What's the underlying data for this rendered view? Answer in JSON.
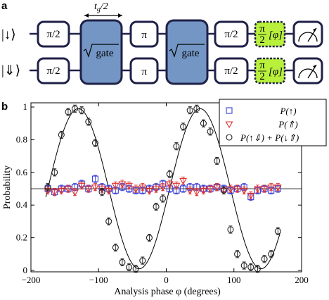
{
  "panel_a": {
    "label": "a",
    "wait_time_label": "t_g/2",
    "states": [
      "|↓⟩",
      "|⇓⟩"
    ],
    "gates": {
      "pi_half": "π/2",
      "pi": "π",
      "sqrt_gate": "gate",
      "analysis_top": "π",
      "analysis_bottom": "2",
      "analysis_phase": "[φ]"
    },
    "colors": {
      "gate_fill": "#7396c4",
      "analysis_fill": "#b8f03c",
      "box_stroke": "#1f2148"
    }
  },
  "panel_b": {
    "label": "b"
  },
  "chart_data": {
    "type": "scatter",
    "xlabel": "Analysis phase φ (degrees)",
    "ylabel": "Probability",
    "xlim": [
      -200,
      200
    ],
    "ylim": [
      0,
      1.02
    ],
    "xticks": [
      -200,
      -100,
      0,
      100,
      200
    ],
    "yticks": [
      0,
      0.2,
      0.4,
      0.6,
      0.8,
      1
    ],
    "grid": false,
    "legend_position": "top-right",
    "reference_line": 0.5,
    "series": [
      {
        "name": "P(↑)",
        "marker": "square",
        "color": "#3a3fd6",
        "x": [
          -175,
          -165,
          -155,
          -145,
          -135,
          -125,
          -115,
          -105,
          -95,
          -85,
          -75,
          -65,
          -55,
          -45,
          -35,
          -25,
          -15,
          -5,
          5,
          15,
          25,
          35,
          45,
          55,
          65,
          75,
          85,
          95,
          105,
          115,
          125,
          135,
          145,
          155,
          165
        ],
        "y": [
          0.5,
          0.48,
          0.5,
          0.5,
          0.51,
          0.53,
          0.5,
          0.56,
          0.51,
          0.5,
          0.49,
          0.51,
          0.5,
          0.49,
          0.49,
          0.5,
          0.51,
          0.53,
          0.5,
          0.49,
          0.5,
          0.51,
          0.51,
          0.5,
          0.5,
          0.51,
          0.5,
          0.49,
          0.5,
          0.51,
          0.45,
          0.49,
          0.5,
          0.49,
          0.5
        ]
      },
      {
        "name": "P(⇑)",
        "marker": "triangle-down",
        "color": "#e03030",
        "x": [
          -175,
          -165,
          -155,
          -145,
          -135,
          -125,
          -115,
          -105,
          -95,
          -85,
          -75,
          -65,
          -55,
          -45,
          -35,
          -25,
          -15,
          -5,
          5,
          15,
          25,
          35,
          45,
          55,
          65,
          75,
          85,
          95,
          105,
          115,
          125,
          135,
          145,
          155,
          165
        ],
        "y": [
          0.49,
          0.48,
          0.49,
          0.5,
          0.48,
          0.52,
          0.5,
          0.51,
          0.5,
          0.49,
          0.52,
          0.53,
          0.52,
          0.5,
          0.51,
          0.49,
          0.5,
          0.51,
          0.53,
          0.52,
          0.55,
          0.49,
          0.48,
          0.49,
          0.5,
          0.51,
          0.49,
          0.5,
          0.5,
          0.49,
          0.46,
          0.5,
          0.5,
          0.51,
          0.51
        ]
      },
      {
        "name": "P(↑⇓) + P(↓⇑)",
        "marker": "circle",
        "color": "#222222",
        "x": [
          -175,
          -165,
          -155,
          -145,
          -135,
          -125,
          -115,
          -105,
          -95,
          -85,
          -75,
          -65,
          -55,
          -45,
          -35,
          -25,
          -15,
          -5,
          5,
          15,
          25,
          35,
          45,
          55,
          65,
          75,
          85,
          95,
          105,
          115,
          125,
          135,
          145,
          155,
          165
        ],
        "y": [
          0.51,
          0.6,
          0.83,
          0.97,
          0.99,
          0.98,
          0.91,
          0.78,
          0.48,
          0.3,
          0.14,
          0.05,
          0.02,
          0.01,
          0.06,
          0.2,
          0.39,
          0.44,
          0.59,
          0.76,
          0.88,
          0.98,
          0.99,
          0.9,
          0.85,
          0.67,
          0.49,
          0.25,
          0.1,
          0.03,
          0.02,
          0.01,
          0.07,
          0.1,
          0.24
        ],
        "fit": "cosine"
      }
    ]
  }
}
